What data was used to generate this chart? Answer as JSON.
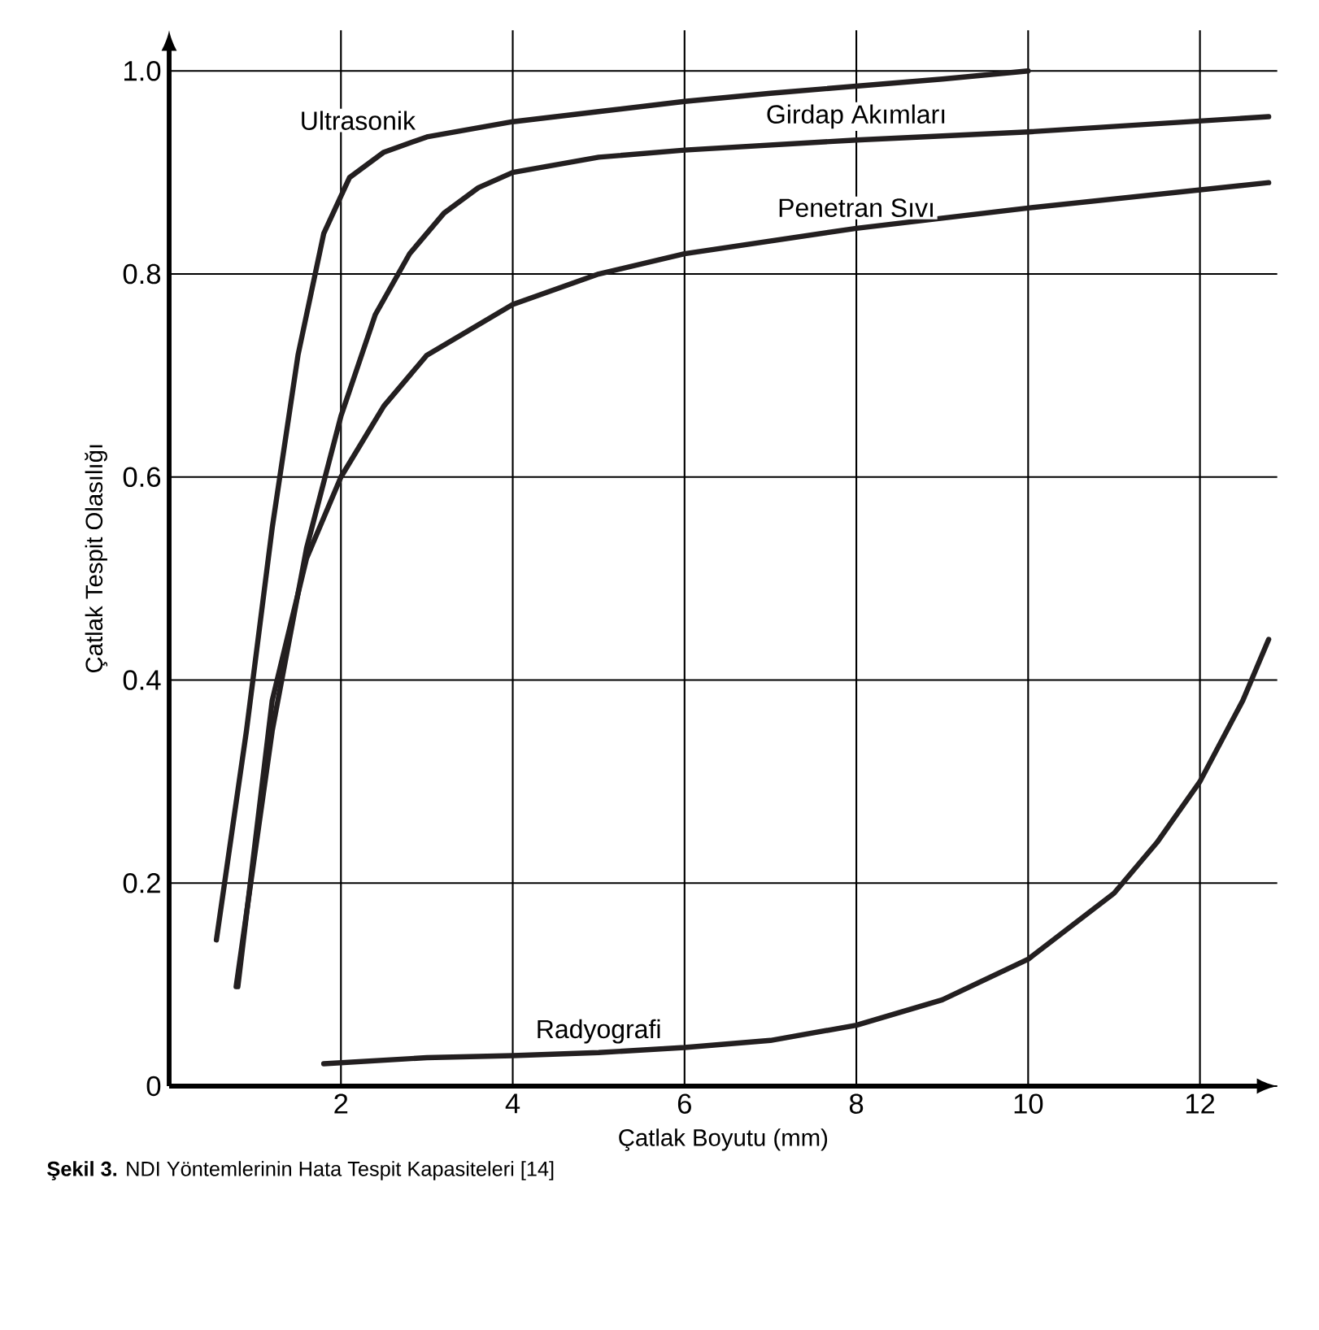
{
  "chart_data": {
    "type": "line",
    "xlabel": "Çatlak Boyutu (mm)",
    "ylabel": "Çatlak Tespit Olasılığı",
    "xlim": [
      0,
      12.9
    ],
    "ylim": [
      0,
      1.04
    ],
    "xticks": [
      2,
      4,
      6,
      8,
      10,
      12
    ],
    "yticks": [
      0,
      0.2,
      0.4,
      0.6,
      0.8,
      {
        "value": 1.0,
        "label": "1.0"
      }
    ],
    "grid": true,
    "marker": "none",
    "line_style": "solid",
    "series": [
      {
        "name": "Ultrasonik",
        "color": "#231f20",
        "x": [
          0.55,
          0.9,
          1.2,
          1.5,
          1.8,
          2.1,
          2.5,
          3,
          4,
          5,
          6,
          7,
          8,
          9,
          10
        ],
        "values": [
          0.144,
          0.35,
          0.55,
          0.72,
          0.84,
          0.895,
          0.92,
          0.935,
          0.95,
          0.96,
          0.97,
          0.978,
          0.985,
          0.992,
          1.0
        ]
      },
      {
        "name": "Girdap Akımları",
        "color": "#231f20",
        "x": [
          0.78,
          1.2,
          1.6,
          2,
          2.4,
          2.8,
          3.2,
          3.6,
          4,
          5,
          6,
          8,
          10,
          12.8
        ],
        "values": [
          0.098,
          0.35,
          0.53,
          0.66,
          0.76,
          0.82,
          0.86,
          0.885,
          0.9,
          0.915,
          0.922,
          0.932,
          0.94,
          0.955
        ]
      },
      {
        "name": "Penetran Sıvı",
        "color": "#231f20",
        "x": [
          0.8,
          1.2,
          1.6,
          2,
          2.5,
          3,
          4,
          5,
          6,
          8,
          10,
          12.8
        ],
        "values": [
          0.098,
          0.38,
          0.52,
          0.6,
          0.67,
          0.72,
          0.77,
          0.8,
          0.82,
          0.845,
          0.865,
          0.89
        ]
      },
      {
        "name": "Radyografi",
        "color": "#231f20",
        "x": [
          1.8,
          3,
          4,
          5,
          6,
          7,
          8,
          9,
          10,
          11,
          11.5,
          12,
          12.5,
          12.8
        ],
        "values": [
          0.022,
          0.028,
          0.03,
          0.033,
          0.038,
          0.045,
          0.06,
          0.085,
          0.125,
          0.19,
          0.24,
          0.3,
          0.38,
          0.44
        ]
      }
    ],
    "annotations": [
      "**Şekil 3.** NDI Yöntemlerinin Hata Tespit Kapasiteleri [14]"
    ]
  }
}
